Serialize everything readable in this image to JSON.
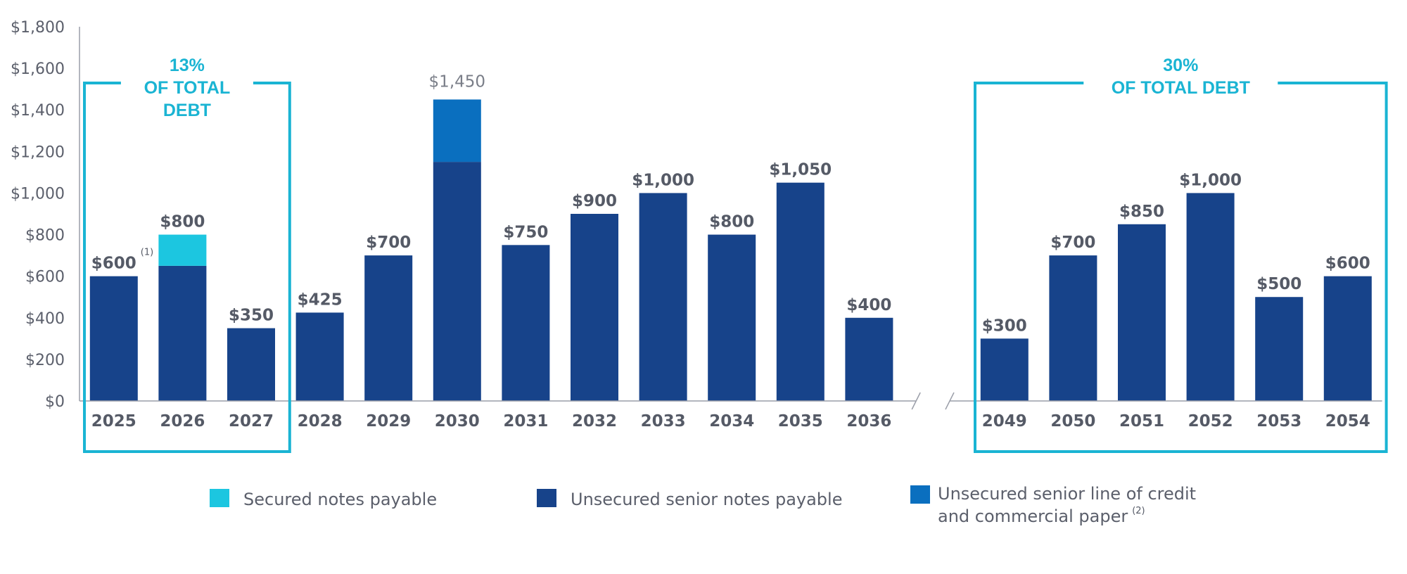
{
  "colors": {
    "secured": "#1cc6e0",
    "unsecured_notes": "#17438a",
    "line_of_credit": "#0a6fbf",
    "highlight_box": "#1ab4d3",
    "axis": "#9a9ea8",
    "text": "#555a66"
  },
  "chart_data": {
    "type": "bar",
    "stacked": true,
    "title": "",
    "xlabel": "",
    "ylabel": "",
    "ylim": [
      0,
      1800
    ],
    "y_ticks": [
      "$0",
      "$200",
      "$400",
      "$600",
      "$800",
      "$1,000",
      "$1,200",
      "$1,400",
      "$1,600",
      "$1,800"
    ],
    "y_tick_values": [
      0,
      200,
      400,
      600,
      800,
      1000,
      1200,
      1400,
      1600,
      1800
    ],
    "axis_break_after": "2036",
    "categories": [
      "2025",
      "2026",
      "2027",
      "2028",
      "2029",
      "2030",
      "2031",
      "2032",
      "2033",
      "2034",
      "2035",
      "2036",
      "2049",
      "2050",
      "2051",
      "2052",
      "2053",
      "2054"
    ],
    "series": [
      {
        "name": "Unsecured senior notes payable",
        "color_key": "unsecured_notes",
        "values": [
          600,
          650,
          350,
          425,
          700,
          1150,
          750,
          900,
          1000,
          800,
          1050,
          400,
          300,
          700,
          850,
          1000,
          500,
          600
        ]
      },
      {
        "name": "Secured notes payable",
        "color_key": "secured",
        "values": [
          0,
          150,
          0,
          0,
          0,
          0,
          0,
          0,
          0,
          0,
          0,
          0,
          0,
          0,
          0,
          0,
          0,
          0
        ]
      },
      {
        "name": "Unsecured senior line of credit and commercial paper",
        "color_key": "line_of_credit",
        "values": [
          0,
          0,
          0,
          0,
          0,
          300,
          0,
          0,
          0,
          0,
          0,
          0,
          0,
          0,
          0,
          0,
          0,
          0
        ]
      }
    ],
    "totals": [
      600,
      800,
      350,
      425,
      700,
      1450,
      750,
      900,
      1000,
      800,
      1050,
      400,
      300,
      700,
      850,
      1000,
      500,
      600
    ],
    "total_labels": [
      "$600",
      "$800",
      "$350",
      "$425",
      "$700",
      "$1,450",
      "$750",
      "$900",
      "$1,000",
      "$800",
      "$1,050",
      "$400",
      "$300",
      "$700",
      "$850",
      "$1,000",
      "$500",
      "$600"
    ],
    "footnotes": [
      {
        "category": "2025",
        "text": "(1)"
      }
    ],
    "highlight_boxes": [
      {
        "line1": "13%",
        "line2": "OF TOTAL",
        "line3": "DEBT",
        "from": "2025",
        "to": "2027"
      },
      {
        "line1": "30%",
        "line2": "OF TOTAL DEBT",
        "line3": "",
        "from": "2049",
        "to": "2054"
      }
    ],
    "legend": [
      {
        "label": "Secured notes payable",
        "color_key": "secured",
        "note": ""
      },
      {
        "label": "Unsecured senior notes payable",
        "color_key": "unsecured_notes",
        "note": ""
      },
      {
        "label": "Unsecured senior line of credit",
        "label2": "and commercial paper",
        "color_key": "line_of_credit",
        "note": "(2)"
      }
    ]
  }
}
